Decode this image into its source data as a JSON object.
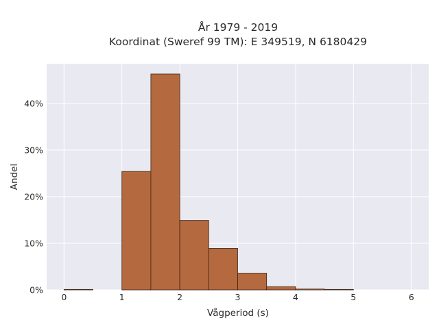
{
  "chart_data": {
    "type": "bar",
    "title_lines": [
      "År 1979 - 2019",
      "Koordinat (Sweref 99 TM): E 349519, N 6180429"
    ],
    "xlabel": "Vågperiod (s)",
    "ylabel": "Andel",
    "xlim": [
      -0.3,
      6.3
    ],
    "ylim": [
      0,
      0.485
    ],
    "x_ticks": [
      0,
      1,
      2,
      3,
      4,
      5,
      6
    ],
    "y_ticks": [
      0,
      0.1,
      0.2,
      0.3,
      0.4
    ],
    "y_tick_labels": [
      "0%",
      "10%",
      "20%",
      "30%",
      "40%"
    ],
    "bin_edges": [
      0,
      0.5,
      1,
      1.5,
      2,
      2.5,
      3,
      3.5,
      4,
      4.5,
      5
    ],
    "values": [
      0.001,
      0,
      0.254,
      0.463,
      0.149,
      0.089,
      0.036,
      0.007,
      0.002,
      0.001
    ],
    "grid": true,
    "background": "#e9e9f1",
    "bar_color": "#b5693f",
    "bar_edge_color": "#3b2416"
  }
}
